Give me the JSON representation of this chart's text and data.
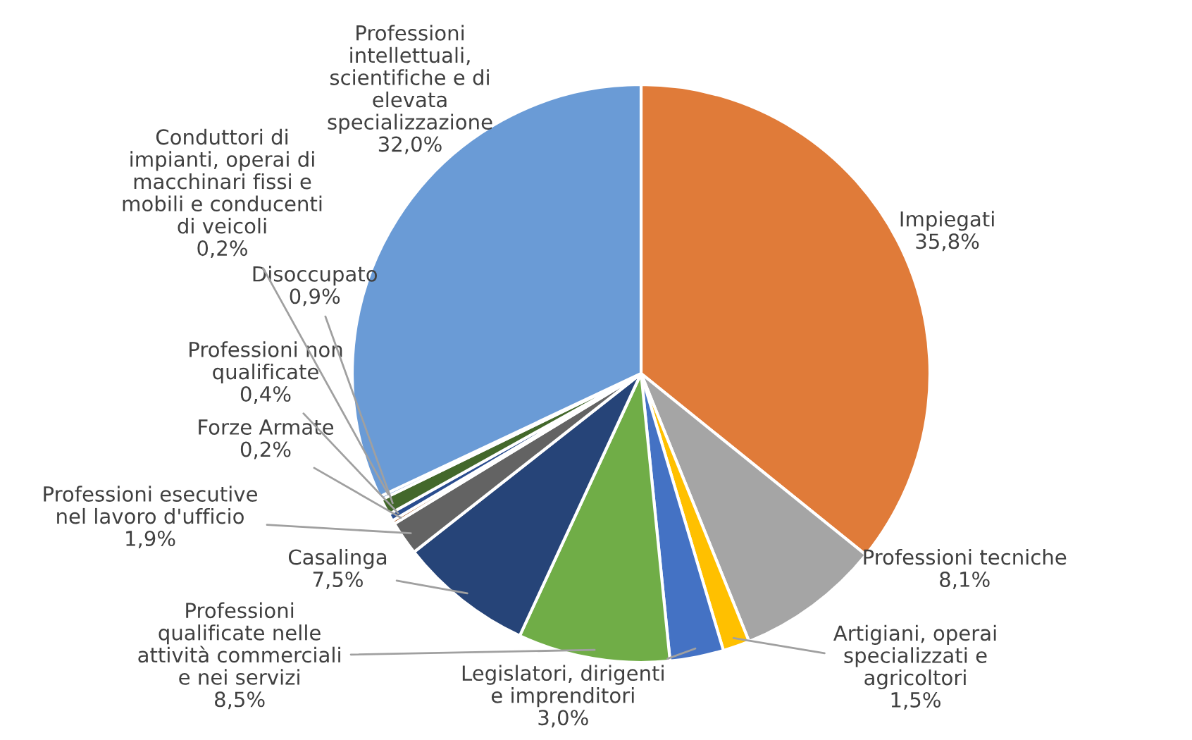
{
  "chart_data": {
    "type": "pie",
    "categories": [
      "Impiegati",
      "Professioni tecniche",
      "Artigiani, operai\nspecializzati e\nagricoltori",
      "Legislatori, dirigenti\ne imprenditori",
      "Professioni\nqualificate nelle\nattività commerciali\ne nei servizi",
      "Casalinga",
      "Professioni esecutive\nnel lavoro d'ufficio",
      "Forze Armate",
      "Professioni non\nqualificate",
      "Disoccupato",
      "Conduttori di\nimpianti, operai di\nmacchinari fissi e\nmobili e conducenti\ndi veicoli",
      "Professioni\nintellettuali,\nscientifiche e di\nelevata\nspecializzazione"
    ],
    "values": [
      35.8,
      8.1,
      1.5,
      3.0,
      8.5,
      7.5,
      1.9,
      0.2,
      0.4,
      0.9,
      0.2,
      32.0
    ],
    "value_labels": [
      "35,8%",
      "8,1%",
      "1,5%",
      "3,0%",
      "8,5%",
      "7,5%",
      "1,9%",
      "0,2%",
      "0,4%",
      "0,9%",
      "0,2%",
      "32,0%"
    ],
    "colors": [
      "#e07b39",
      "#a5a5a5",
      "#ffc000",
      "#4472c4",
      "#70ad47",
      "#264478",
      "#636363",
      "#9e480e",
      "#2a4d8f",
      "#43682b",
      "#7f9fd4",
      "#6a9bd6"
    ],
    "legend": false
  }
}
